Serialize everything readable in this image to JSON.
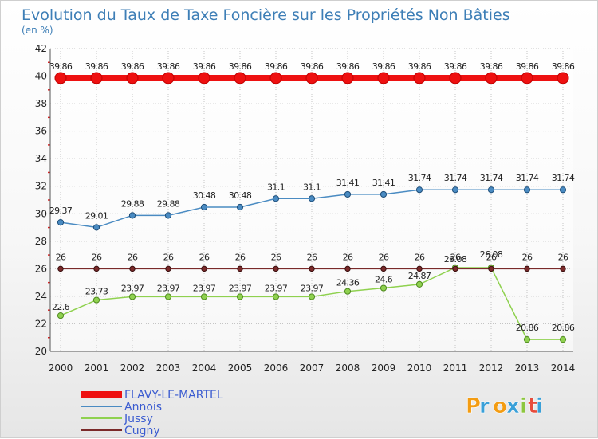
{
  "chart_data": {
    "type": "line",
    "title": "Evolution du Taux de Taxe Foncière sur les Propriétés Non Bâties",
    "subtitle": "(en %)",
    "x": [
      "2000",
      "2001",
      "2002",
      "2003",
      "2004",
      "2005",
      "2006",
      "2007",
      "2008",
      "2009",
      "2010",
      "2011",
      "2012",
      "2013",
      "2014"
    ],
    "ylim": [
      20,
      42
    ],
    "yticks": [
      "20",
      "22",
      "24",
      "26",
      "28",
      "30",
      "32",
      "34",
      "36",
      "38",
      "40",
      "42"
    ],
    "grid": true,
    "legend_position": "bottom-left",
    "series": [
      {
        "name": "FLAVY-LE-MARTEL",
        "color": "#ee1111",
        "values": [
          39.86,
          39.86,
          39.86,
          39.86,
          39.86,
          39.86,
          39.86,
          39.86,
          39.86,
          39.86,
          39.86,
          39.86,
          39.86,
          39.86,
          39.86
        ],
        "labels": [
          "39.86",
          "39.86",
          "39.86",
          "39.86",
          "39.86",
          "39.86",
          "39.86",
          "39.86",
          "39.86",
          "39.86",
          "39.86",
          "39.86",
          "39.86",
          "39.86",
          "39.86"
        ]
      },
      {
        "name": "Annois",
        "color": "#4a8bc2",
        "values": [
          29.37,
          29.01,
          29.88,
          29.88,
          30.48,
          30.48,
          31.1,
          31.1,
          31.41,
          31.41,
          31.74,
          31.74,
          31.74,
          31.74,
          31.74
        ],
        "labels": [
          "29.37",
          "29.01",
          "29.88",
          "29.88",
          "30.48",
          "30.48",
          "31.1",
          "31.1",
          "31.41",
          "31.41",
          "31.74",
          "31.74",
          "31.74",
          "31.74",
          "31.74"
        ]
      },
      {
        "name": "Jussy",
        "color": "#8fd14f",
        "values": [
          22.6,
          23.73,
          23.97,
          23.97,
          23.97,
          23.97,
          23.97,
          23.97,
          24.36,
          24.6,
          24.87,
          26.08,
          26.08,
          20.86,
          20.86
        ],
        "labels": [
          "22.6",
          "23.73",
          "23.97",
          "23.97",
          "23.97",
          "23.97",
          "23.97",
          "23.97",
          "24.36",
          "24.6",
          "24.87",
          "26.08",
          "26.08",
          "20.86",
          "20.86"
        ]
      },
      {
        "name": "Cugny",
        "color": "#7a2a2a",
        "values": [
          26,
          26,
          26,
          26,
          26,
          26,
          26,
          26,
          26,
          26,
          26,
          26,
          26,
          26,
          26
        ],
        "labels": [
          "26",
          "26",
          "26",
          "26",
          "26",
          "26",
          "26",
          "26",
          "26",
          "26",
          "26",
          "26",
          "26",
          "26",
          "26"
        ]
      }
    ]
  },
  "branding": {
    "logo_text": "Proxiti",
    "logo_colors": [
      "#f39c12",
      "#3aa0d8",
      "#f39c12",
      "#3aa0d8",
      "#8dc63f",
      "#e74c3c",
      "#3aa0d8"
    ]
  }
}
